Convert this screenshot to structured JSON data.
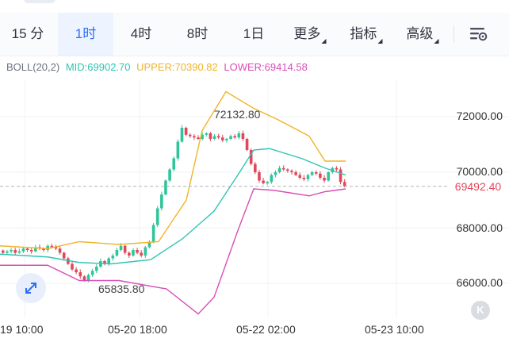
{
  "tabs": [
    {
      "label": "15 分",
      "active": false
    },
    {
      "label": "1时",
      "active": true
    },
    {
      "label": "4时",
      "active": false
    },
    {
      "label": "8时",
      "active": false
    },
    {
      "label": "1日",
      "active": false
    },
    {
      "label": "更多",
      "active": false,
      "dropdown": true
    },
    {
      "label": "指标",
      "active": false,
      "dropdown": true
    },
    {
      "label": "高级",
      "active": false,
      "dropdown": true
    }
  ],
  "settings_icon": "chart-settings-icon",
  "indicator": {
    "name": "BOLL(20,2)",
    "mid": "MID:69902.70",
    "upper": "UPPER:70390.82",
    "lower": "LOWER:69414.58"
  },
  "colors": {
    "accent": "#2d6ff5",
    "up_candle": "#2fc49a",
    "down_candle": "#e0475a",
    "mid": "#2fc4b2",
    "upper": "#f0b429",
    "lower": "#d94fb6"
  },
  "chart_data": {
    "type": "candlestick",
    "y_ticks": [
      "72000.00",
      "70000.00",
      "68000.00",
      "66000.00"
    ],
    "ylim": [
      65000,
      73000
    ],
    "x_ticks": [
      "19 10:00",
      "05-20 18:00",
      "05-22 02:00",
      "05-23 10:00"
    ],
    "last_price": "69492.40",
    "annotations": {
      "high": "72132.80",
      "low": "65835.80"
    }
  },
  "expand_icon": "expand-arrows-icon",
  "k_button_label": "K"
}
